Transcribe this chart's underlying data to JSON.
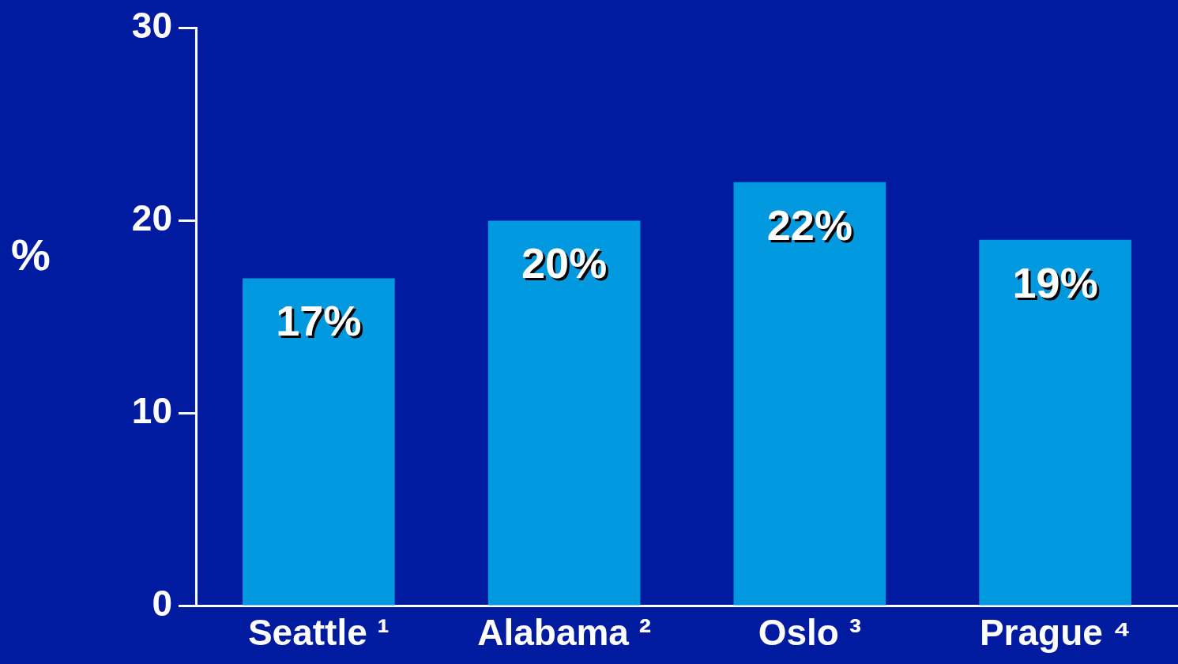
{
  "chart_data": {
    "type": "bar",
    "ylabel": "%",
    "categories": [
      "Seattle ¹",
      "Alabama ²",
      "Oslo ³",
      "Prague ⁴"
    ],
    "values": [
      17,
      20,
      22,
      19
    ],
    "value_labels": [
      "17%",
      "20%",
      "22%",
      "19%"
    ],
    "color": "#0099e0",
    "ylim": [
      0,
      30
    ],
    "yticks": [
      0,
      10,
      20,
      30
    ],
    "grid": false,
    "legend": false
  }
}
